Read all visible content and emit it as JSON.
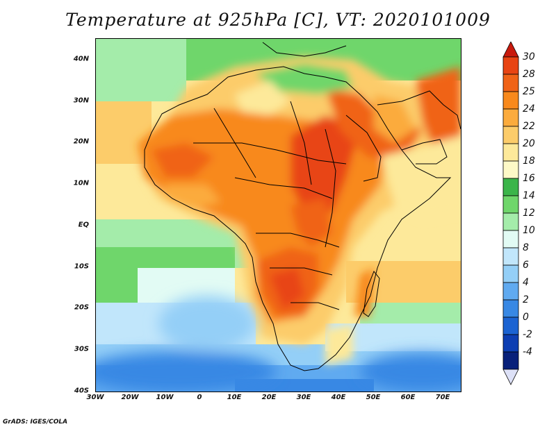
{
  "title": "Temperature at 925hPa [C], VT: 2020101009",
  "credit": "GrADS: IGES/COLA",
  "map": {
    "lon_range": [
      -30,
      75
    ],
    "lat_range": [
      -40,
      45
    ],
    "lat_labels": [
      "40N",
      "30N",
      "20N",
      "10N",
      "EQ",
      "10S",
      "20S",
      "30S",
      "40S"
    ],
    "lat_values": [
      40,
      30,
      20,
      10,
      0,
      -10,
      -20,
      -30,
      -40
    ],
    "lon_labels": [
      "30W",
      "20W",
      "10W",
      "0",
      "10E",
      "20E",
      "30E",
      "40E",
      "50E",
      "60E",
      "70E"
    ],
    "lon_values": [
      -30,
      -20,
      -10,
      0,
      10,
      20,
      30,
      40,
      50,
      60,
      70
    ]
  },
  "colorbar": {
    "labels": [
      "30",
      "28",
      "25",
      "24",
      "22",
      "20",
      "18",
      "16",
      "14",
      "12",
      "10",
      "8",
      "6",
      "4",
      "2",
      "0",
      "-2",
      "-4"
    ],
    "colors": [
      "#e84413",
      "#f06317",
      "#f8891c",
      "#fbab3d",
      "#fccc6a",
      "#fde99a",
      "#fdf9c7",
      "#3bb54a",
      "#6fd66b",
      "#a4ecaa",
      "#e2fbf4",
      "#c1e6fb",
      "#94cff7",
      "#60aaf0",
      "#3888e4",
      "#1b63d2",
      "#0d3eb2",
      "#08207a"
    ],
    "top_color": "#c81a0d",
    "bottom_color": "#dde1f7"
  }
}
